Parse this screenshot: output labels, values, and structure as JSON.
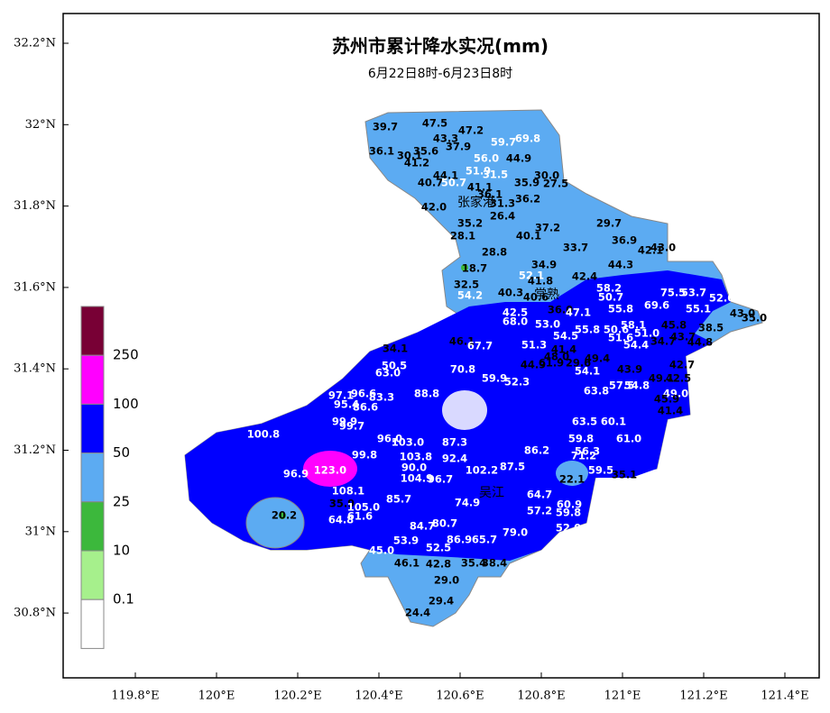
{
  "map": {
    "title": "苏州市累计降水实况(mm)",
    "subtitle": "6月22日8时-6月23日8时",
    "lon_ticks": [
      {
        "value": 119.8,
        "label": "119.8°E"
      },
      {
        "value": 120,
        "label": "120°E"
      },
      {
        "value": 120.2,
        "label": "120.2°E"
      },
      {
        "value": 120.4,
        "label": "120.4°E"
      },
      {
        "value": 120.6,
        "label": "120.6°E"
      },
      {
        "value": 120.8,
        "label": "120.8°E"
      },
      {
        "value": 121,
        "label": "121°E"
      },
      {
        "value": 121.2,
        "label": "121.2°E"
      },
      {
        "value": 121.4,
        "label": "121.4°E"
      }
    ],
    "lat_ticks": [
      {
        "value": 32.2,
        "label": "32.2°N"
      },
      {
        "value": 32,
        "label": "32°N"
      },
      {
        "value": 31.8,
        "label": "31.8°N"
      },
      {
        "value": 31.6,
        "label": "31.6°N"
      },
      {
        "value": 31.4,
        "label": "31.4°N"
      },
      {
        "value": 31.2,
        "label": "31.2°N"
      },
      {
        "value": 31,
        "label": "31°N"
      },
      {
        "value": 30.8,
        "label": "30.8°N"
      }
    ],
    "legend": {
      "levels": [
        250,
        100,
        50,
        25,
        10,
        0.1
      ],
      "colors": [
        "#780035",
        "#ff00ff",
        "#0000ff",
        "#5cabf2",
        "#3cb83c",
        "#a6f08c",
        "#ffffff"
      ]
    },
    "cities": [
      "张家港",
      "常熟",
      "吴江"
    ],
    "stations": [
      "39.7",
      "47.5",
      "47.2",
      "43.3",
      "59.7",
      "69.8",
      "36.1",
      "35.6",
      "37.9",
      "30.1",
      "41.2",
      "56.0",
      "44.9",
      "51.9",
      "31.5",
      "30.0",
      "35.9",
      "27.5",
      "44.1",
      "40.7",
      "50.7",
      "41.1",
      "36.1",
      "31.3",
      "36.2",
      "42.0",
      "26.4",
      "35.2",
      "28.1",
      "37.2",
      "40.1",
      "29.7",
      "36.9",
      "33.7",
      "28.8",
      "42.1",
      "43.0",
      "34.9",
      "44.3",
      "18.7",
      "42.4",
      "52.1",
      "41.8",
      "32.5",
      "54.2",
      "58.2",
      "50.7",
      "40.3",
      "40.6",
      "75.5",
      "53.7",
      "52.6",
      "69.6",
      "55.1",
      "43.0",
      "35.0",
      "42.5",
      "68.0",
      "53.0",
      "36.0",
      "47.1",
      "55.8",
      "45.8",
      "38.5",
      "55.8",
      "50.6",
      "58.1",
      "51.6",
      "51.0",
      "54.5",
      "34.7",
      "43.7",
      "44.8",
      "54.4",
      "51.3",
      "41.4",
      "46.1",
      "67.7",
      "34.1",
      "42.7",
      "48.0",
      "49.4",
      "50.5",
      "44.9",
      "61.9",
      "29.6",
      "70.8",
      "54.1",
      "43.9",
      "49.1",
      "42.5",
      "63.0",
      "52.3",
      "59.9",
      "97.1",
      "96.6",
      "83.3",
      "88.8",
      "63.8",
      "57.5",
      "54.8",
      "49.0",
      "95.4",
      "86.6",
      "45.9",
      "41.4",
      "99.9",
      "99.7",
      "63.5",
      "60.1",
      "100.8",
      "96.0",
      "103.0",
      "87.3",
      "59.8",
      "61.0",
      "99.8",
      "103.8",
      "90.0",
      "92.4",
      "56.3",
      "71.2",
      "123.0",
      "96.9",
      "104.9",
      "96.7",
      "102.2",
      "87.5",
      "86.2",
      "59.5",
      "35.1",
      "22.1",
      "108.1",
      "85.7",
      "74.9",
      "64.7",
      "35.9",
      "105.0",
      "57.2",
      "60.9",
      "59.8",
      "20.2",
      "64.8",
      "61.6",
      "80.7",
      "84.7",
      "79.0",
      "52.0",
      "53.9",
      "86.9",
      "65.7",
      "52.5",
      "45.0",
      "46.1",
      "42.8",
      "35.4",
      "38.4",
      "29.0",
      "29.4",
      "24.4"
    ]
  }
}
